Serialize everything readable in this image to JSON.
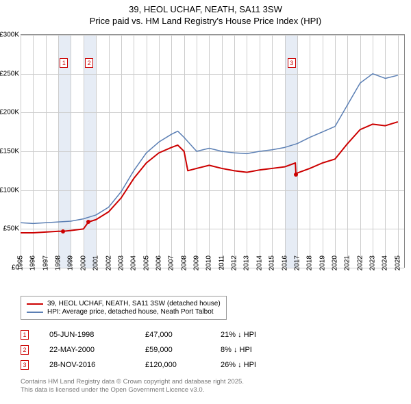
{
  "title_line1": "39, HEOL UCHAF, NEATH, SA11 3SW",
  "title_line2": "Price paid vs. HM Land Registry's House Price Index (HPI)",
  "chart": {
    "type": "line",
    "background_color": "#ffffff",
    "grid_color": "#cccccc",
    "shade_color": "#e6ecf5",
    "x_years": [
      1995,
      1996,
      1997,
      1998,
      1999,
      2000,
      2001,
      2002,
      2003,
      2004,
      2005,
      2006,
      2007,
      2008,
      2009,
      2010,
      2011,
      2012,
      2013,
      2014,
      2015,
      2016,
      2017,
      2018,
      2019,
      2020,
      2021,
      2022,
      2023,
      2024,
      2025
    ],
    "x_min": 1995,
    "x_max": 2025.5,
    "y_ticks": [
      0,
      50000,
      100000,
      150000,
      200000,
      250000,
      300000
    ],
    "y_labels": [
      "£0",
      "£50K",
      "£100K",
      "£150K",
      "£200K",
      "£250K",
      "£300K"
    ],
    "y_min": 0,
    "y_max": 300000,
    "shaded_ranges": [
      [
        1998,
        1999
      ],
      [
        2000,
        2001
      ],
      [
        2016,
        2017
      ]
    ],
    "series_subject": {
      "label": "39, HEOL UCHAF, NEATH, SA11 3SW (detached house)",
      "color": "#cc0000",
      "width": 2,
      "data": [
        [
          1995,
          45000
        ],
        [
          1996,
          45000
        ],
        [
          1997,
          46000
        ],
        [
          1998,
          47000
        ],
        [
          1998.4,
          47000
        ],
        [
          1999,
          48000
        ],
        [
          2000,
          50000
        ],
        [
          2000.4,
          59000
        ],
        [
          2001,
          62000
        ],
        [
          2002,
          72000
        ],
        [
          2003,
          90000
        ],
        [
          2004,
          115000
        ],
        [
          2005,
          135000
        ],
        [
          2006,
          148000
        ],
        [
          2007,
          155000
        ],
        [
          2007.5,
          158000
        ],
        [
          2008,
          150000
        ],
        [
          2008.3,
          125000
        ],
        [
          2009,
          128000
        ],
        [
          2010,
          132000
        ],
        [
          2011,
          128000
        ],
        [
          2012,
          125000
        ],
        [
          2013,
          123000
        ],
        [
          2014,
          126000
        ],
        [
          2015,
          128000
        ],
        [
          2016,
          130000
        ],
        [
          2016.85,
          135000
        ],
        [
          2016.9,
          120000
        ],
        [
          2017,
          122000
        ],
        [
          2018,
          128000
        ],
        [
          2019,
          135000
        ],
        [
          2020,
          140000
        ],
        [
          2021,
          160000
        ],
        [
          2022,
          178000
        ],
        [
          2023,
          185000
        ],
        [
          2024,
          183000
        ],
        [
          2025,
          188000
        ]
      ]
    },
    "series_hpi": {
      "label": "HPI: Average price, detached house, Neath Port Talbot",
      "color": "#5b7fb4",
      "width": 1.5,
      "data": [
        [
          1995,
          58000
        ],
        [
          1996,
          57000
        ],
        [
          1997,
          58000
        ],
        [
          1998,
          59000
        ],
        [
          1999,
          60000
        ],
        [
          2000,
          63000
        ],
        [
          2001,
          68000
        ],
        [
          2002,
          78000
        ],
        [
          2003,
          98000
        ],
        [
          2004,
          125000
        ],
        [
          2005,
          148000
        ],
        [
          2006,
          162000
        ],
        [
          2007,
          172000
        ],
        [
          2007.5,
          176000
        ],
        [
          2008,
          168000
        ],
        [
          2009,
          150000
        ],
        [
          2010,
          154000
        ],
        [
          2011,
          150000
        ],
        [
          2012,
          148000
        ],
        [
          2013,
          147000
        ],
        [
          2014,
          150000
        ],
        [
          2015,
          152000
        ],
        [
          2016,
          155000
        ],
        [
          2017,
          160000
        ],
        [
          2018,
          168000
        ],
        [
          2019,
          175000
        ],
        [
          2020,
          182000
        ],
        [
          2021,
          210000
        ],
        [
          2022,
          238000
        ],
        [
          2023,
          250000
        ],
        [
          2024,
          244000
        ],
        [
          2025,
          248000
        ]
      ]
    },
    "sale_markers": [
      {
        "n": "1",
        "x": 1998.4,
        "y": 47000,
        "box_x": 1998.4,
        "box_y": 270000
      },
      {
        "n": "2",
        "x": 2000.4,
        "y": 59000,
        "box_x": 2000.4,
        "box_y": 270000
      },
      {
        "n": "3",
        "x": 2016.9,
        "y": 120000,
        "box_x": 2016.5,
        "box_y": 270000
      }
    ]
  },
  "sales": [
    {
      "n": "1",
      "date": "05-JUN-1998",
      "price": "£47,000",
      "delta": "21% ↓ HPI"
    },
    {
      "n": "2",
      "date": "22-MAY-2000",
      "price": "£59,000",
      "delta": "8% ↓ HPI"
    },
    {
      "n": "3",
      "date": "28-NOV-2016",
      "price": "£120,000",
      "delta": "26% ↓ HPI"
    }
  ],
  "footnote_line1": "Contains HM Land Registry data © Crown copyright and database right 2025.",
  "footnote_line2": "This data is licensed under the Open Government Licence v3.0."
}
